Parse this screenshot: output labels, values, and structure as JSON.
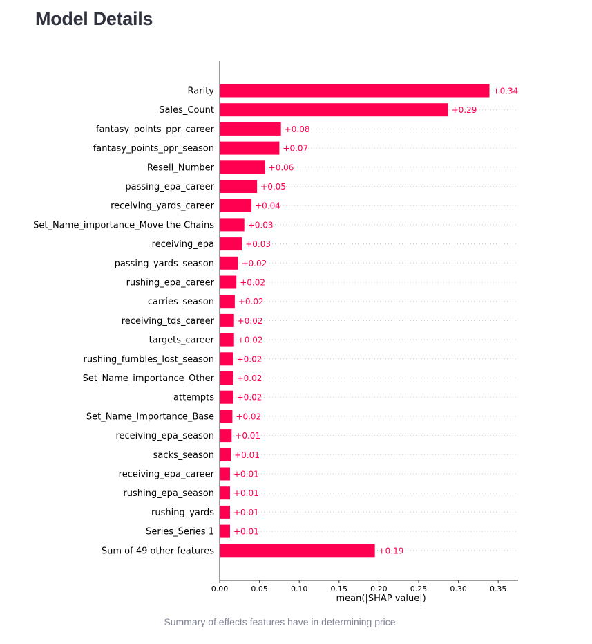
{
  "page": {
    "title": "Model Details",
    "caption": "Summary of effects features have in determining price"
  },
  "colors": {
    "bar": "#ff0051",
    "grid": "#cccccc",
    "axis": "#333333"
  },
  "chart_data": {
    "type": "bar",
    "orientation": "horizontal",
    "title": "",
    "xlabel": "mean(|SHAP value|)",
    "ylabel": "",
    "xlim": [
      0,
      0.375
    ],
    "xticks": [
      "0.00",
      "0.05",
      "0.10",
      "0.15",
      "0.20",
      "0.25",
      "0.30",
      "0.35"
    ],
    "grid": "horizontal dotted lines per row",
    "categories": [
      "Rarity",
      "Sales_Count",
      "fantasy_points_ppr_career",
      "fantasy_points_ppr_season",
      "Resell_Number",
      "passing_epa_career",
      "receiving_yards_career",
      "Set_Name_importance_Move the Chains",
      "receiving_epa",
      "passing_yards_season",
      "rushing_epa_career",
      "carries_season",
      "receiving_tds_career",
      "targets_career",
      "rushing_fumbles_lost_season",
      "Set_Name_importance_Other",
      "attempts",
      "Set_Name_importance_Base",
      "receiving_epa_season",
      "sacks_season",
      "receiving_epa_career",
      "rushing_epa_season",
      "rushing_yards",
      "Series_Series 1",
      "Sum of 49 other features"
    ],
    "values": [
      0.339,
      0.287,
      0.077,
      0.075,
      0.057,
      0.047,
      0.04,
      0.031,
      0.028,
      0.023,
      0.021,
      0.019,
      0.018,
      0.018,
      0.017,
      0.017,
      0.017,
      0.016,
      0.015,
      0.014,
      0.013,
      0.013,
      0.013,
      0.013,
      0.195
    ],
    "value_labels": [
      "+0.34",
      "+0.29",
      "+0.08",
      "+0.07",
      "+0.06",
      "+0.05",
      "+0.04",
      "+0.03",
      "+0.03",
      "+0.02",
      "+0.02",
      "+0.02",
      "+0.02",
      "+0.02",
      "+0.02",
      "+0.02",
      "+0.02",
      "+0.02",
      "+0.01",
      "+0.01",
      "+0.01",
      "+0.01",
      "+0.01",
      "+0.01",
      "+0.19"
    ]
  }
}
